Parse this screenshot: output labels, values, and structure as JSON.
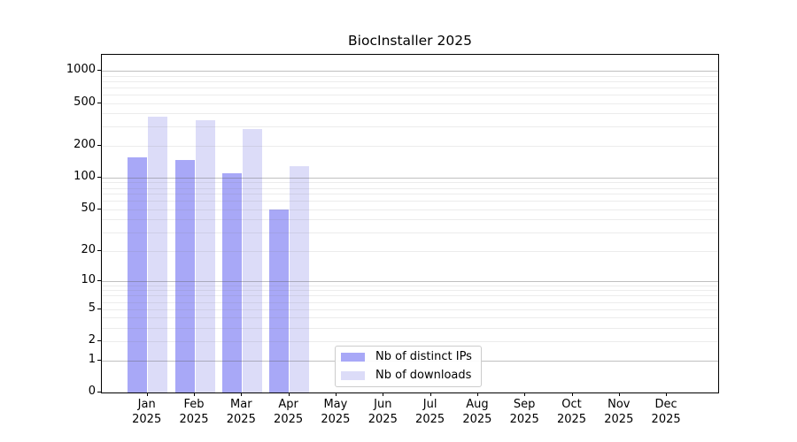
{
  "title": "BiocInstaller 2025",
  "chart_data": {
    "type": "bar",
    "title": "BiocInstaller 2025",
    "categories": [
      "Jan",
      "Feb",
      "Mar",
      "Apr",
      "May",
      "Jun",
      "Jul",
      "Aug",
      "Sep",
      "Oct",
      "Nov",
      "Dec"
    ],
    "category_year": "2025",
    "series": [
      {
        "name": "Nb of distinct IPs",
        "color": "#a8a8f7",
        "values": [
          155,
          147,
          110,
          50,
          0,
          0,
          0,
          0,
          0,
          0,
          0,
          0
        ]
      },
      {
        "name": "Nb of downloads",
        "color": "#dcdcf8",
        "values": [
          370,
          345,
          285,
          128,
          0,
          0,
          0,
          0,
          0,
          0,
          0,
          0
        ]
      }
    ],
    "yscale": "log1p",
    "y_ticks": [
      0,
      1,
      2,
      5,
      10,
      20,
      50,
      100,
      200,
      500,
      1000
    ],
    "ylim": [
      0,
      1000
    ],
    "grid": true,
    "legend_position": "lower center"
  },
  "legend": {
    "items": [
      {
        "label": "Nb of distinct IPs",
        "color": "#a8a8f7"
      },
      {
        "label": "Nb of downloads",
        "color": "#dcdcf8"
      }
    ]
  },
  "colors": {
    "bar_distinct_ips": "#a8a8f7",
    "bar_downloads": "#dcdcf8",
    "major_grid": "#c0c0c0",
    "minor_grid": "#ececec",
    "axis": "#000000"
  }
}
